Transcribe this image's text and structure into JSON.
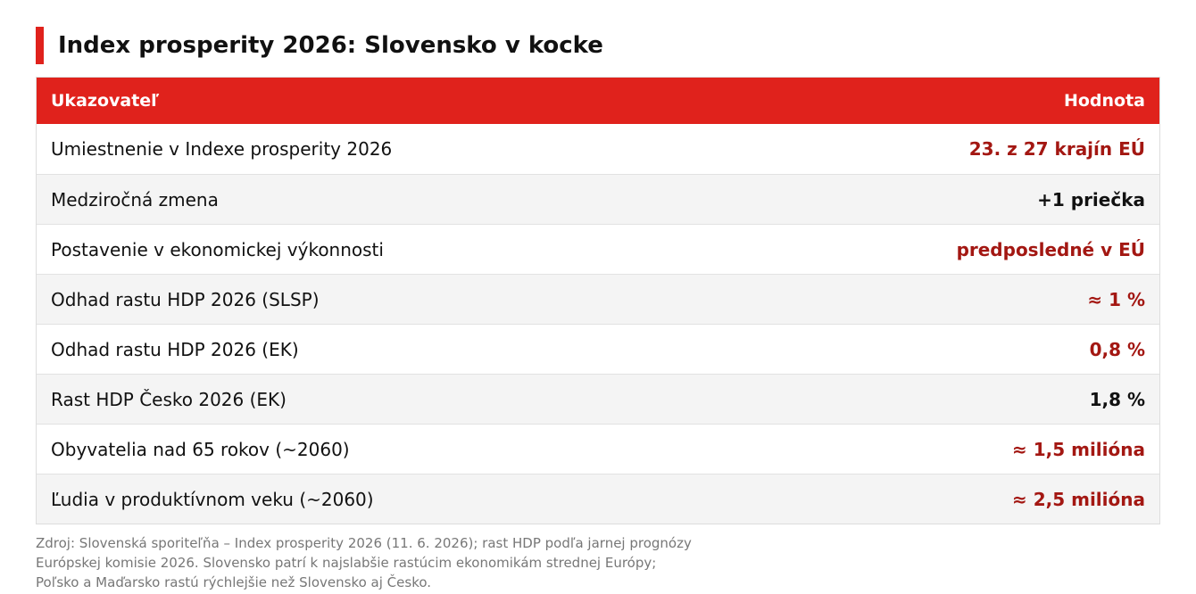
{
  "title": "Index prosperity 2026: Slovensko v kocke",
  "table": {
    "header": {
      "indicator": "Ukazovateľ",
      "value": "Hodnota"
    },
    "rows": [
      {
        "label": "Umiestnenie v Indexe prosperity 2026",
        "value": "23. z 27 krajín EÚ",
        "highlight": true
      },
      {
        "label": "Medziročná zmena",
        "value": "+1 priečka",
        "highlight": false
      },
      {
        "label": "Postavenie v ekonomickej výkonnosti",
        "value": "predposledné v EÚ",
        "highlight": true
      },
      {
        "label": "Odhad rastu HDP 2026 (SLSP)",
        "value": "≈ 1 %",
        "highlight": true
      },
      {
        "label": "Odhad rastu HDP 2026 (EK)",
        "value": "0,8 %",
        "highlight": true
      },
      {
        "label": "Rast HDP Česko 2026 (EK)",
        "value": "1,8 %",
        "highlight": false
      },
      {
        "label": "Obyvatelia nad 65 rokov (~2060)",
        "value": "≈ 1,5 milióna",
        "highlight": true
      },
      {
        "label": "Ľudia v produktívnom veku (~2060)",
        "value": "≈ 2,5 milióna",
        "highlight": true
      }
    ]
  },
  "source_note": {
    "line1": "Zdroj: Slovenská sporiteľňa – Index prosperity 2026 (11. 6. 2026); rast HDP podľa jarnej prognózy",
    "line2": "Európskej komisie 2026. Slovensko patrí k najslabšie rastúcim ekonomikám strednej Európy;",
    "line3": "Poľsko a Maďarsko rastú rýchlejšie než Slovensko aj Česko."
  },
  "colors": {
    "accent": "#e0221c",
    "highlight_value": "#a31712",
    "row_alt_bg": "#f4f4f4",
    "note_text": "#777777"
  }
}
